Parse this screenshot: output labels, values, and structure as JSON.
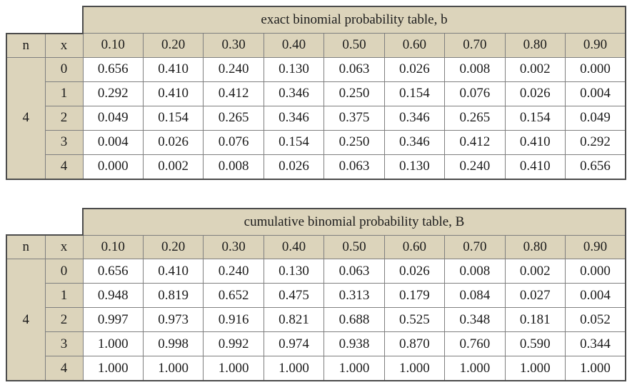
{
  "colors": {
    "header_fill": "#dcd4bb",
    "grid_line": "#7f7f7f",
    "outer_line": "#4c4c4c",
    "text": "#1c1c1c",
    "page_background": "#ffffff"
  },
  "chart_data": [
    {
      "type": "table",
      "title": "exact binomial probability table, b",
      "corner_labels": [
        "n",
        "x"
      ],
      "p_values": [
        "0.10",
        "0.20",
        "0.30",
        "0.40",
        "0.50",
        "0.60",
        "0.70",
        "0.80",
        "0.90"
      ],
      "n_value": "4",
      "x_values": [
        "0",
        "1",
        "2",
        "3",
        "4"
      ],
      "rows": [
        [
          "0.656",
          "0.410",
          "0.240",
          "0.130",
          "0.063",
          "0.026",
          "0.008",
          "0.002",
          "0.000"
        ],
        [
          "0.292",
          "0.410",
          "0.412",
          "0.346",
          "0.250",
          "0.154",
          "0.076",
          "0.026",
          "0.004"
        ],
        [
          "0.049",
          "0.154",
          "0.265",
          "0.346",
          "0.375",
          "0.346",
          "0.265",
          "0.154",
          "0.049"
        ],
        [
          "0.004",
          "0.026",
          "0.076",
          "0.154",
          "0.250",
          "0.346",
          "0.412",
          "0.410",
          "0.292"
        ],
        [
          "0.000",
          "0.002",
          "0.008",
          "0.026",
          "0.063",
          "0.130",
          "0.240",
          "0.410",
          "0.656"
        ]
      ]
    },
    {
      "type": "table",
      "title": "cumulative binomial probability table, B",
      "corner_labels": [
        "n",
        "x"
      ],
      "p_values": [
        "0.10",
        "0.20",
        "0.30",
        "0.40",
        "0.50",
        "0.60",
        "0.70",
        "0.80",
        "0.90"
      ],
      "n_value": "4",
      "x_values": [
        "0",
        "1",
        "2",
        "3",
        "4"
      ],
      "rows": [
        [
          "0.656",
          "0.410",
          "0.240",
          "0.130",
          "0.063",
          "0.026",
          "0.008",
          "0.002",
          "0.000"
        ],
        [
          "0.948",
          "0.819",
          "0.652",
          "0.475",
          "0.313",
          "0.179",
          "0.084",
          "0.027",
          "0.004"
        ],
        [
          "0.997",
          "0.973",
          "0.916",
          "0.821",
          "0.688",
          "0.525",
          "0.348",
          "0.181",
          "0.052"
        ],
        [
          "1.000",
          "0.998",
          "0.992",
          "0.974",
          "0.938",
          "0.870",
          "0.760",
          "0.590",
          "0.344"
        ],
        [
          "1.000",
          "1.000",
          "1.000",
          "1.000",
          "1.000",
          "1.000",
          "1.000",
          "1.000",
          "1.000"
        ]
      ]
    }
  ]
}
